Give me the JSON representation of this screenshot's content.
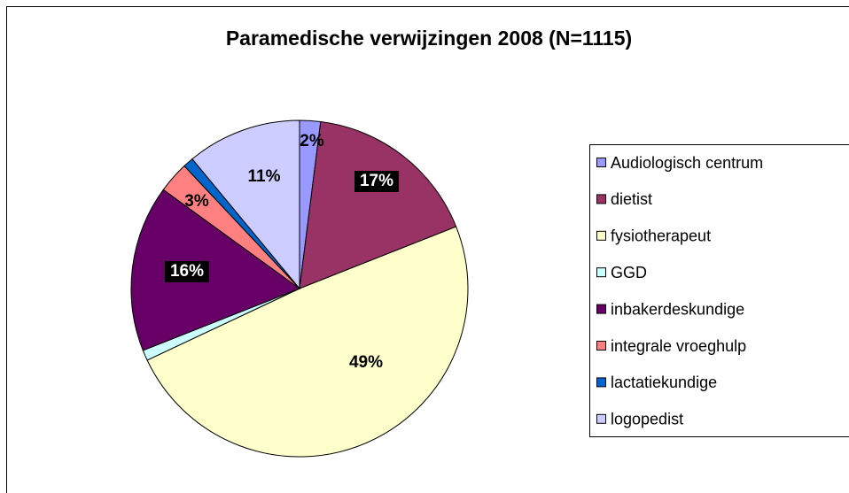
{
  "chart_data": {
    "type": "pie",
    "title": "Paramedische verwijzingen 2008 (N=1115)",
    "categories": [
      "Audiologisch centrum",
      "dietist",
      "fysiotherapeut",
      "GGD",
      "inbakerdeskundige",
      "integrale vroeghulp",
      "lactatiekundige",
      "logopedist"
    ],
    "values": [
      2,
      17,
      49,
      1,
      16,
      3,
      1,
      11
    ],
    "value_labels": [
      "2%",
      "17%",
      "49%",
      null,
      "16%",
      "3%",
      null,
      "11%"
    ],
    "colors": [
      "#9999FF",
      "#993366",
      "#FFFFCC",
      "#CCFFFF",
      "#660066",
      "#FF8080",
      "#0066CC",
      "#CCCCFF"
    ],
    "legend": "right"
  }
}
